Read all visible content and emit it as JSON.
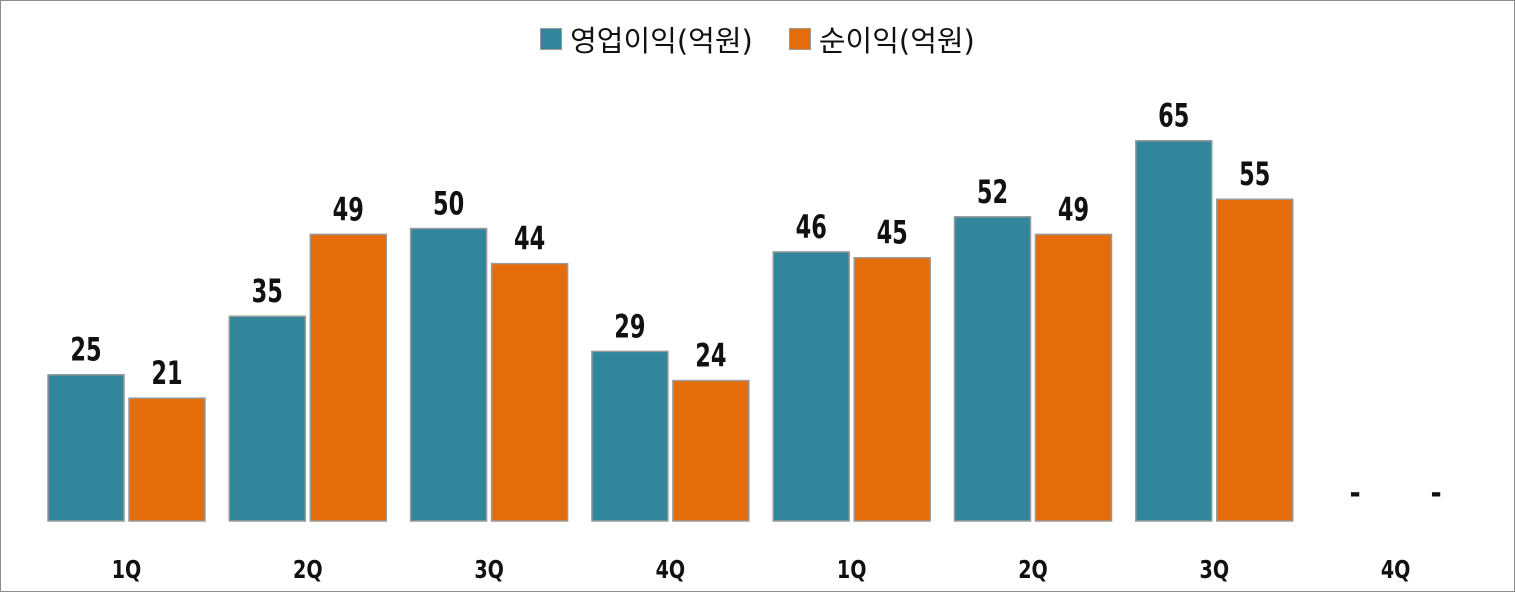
{
  "chart_data": {
    "type": "bar",
    "categories": [
      "1Q",
      "2Q",
      "3Q",
      "4Q",
      "1Q",
      "2Q",
      "3Q",
      "4Q"
    ],
    "series": [
      {
        "name": "영업이익(억원)",
        "color": "#31869b",
        "values": [
          25,
          35,
          50,
          29,
          46,
          52,
          65,
          null
        ]
      },
      {
        "name": "순이익(억원)",
        "color": "#e46c0a",
        "values": [
          21,
          49,
          44,
          24,
          45,
          49,
          55,
          null
        ]
      }
    ],
    "missing_label": "-",
    "title": "",
    "xlabel": "",
    "ylabel": "",
    "ylim": [
      0,
      65
    ],
    "grid": false,
    "legend_position": "top"
  }
}
